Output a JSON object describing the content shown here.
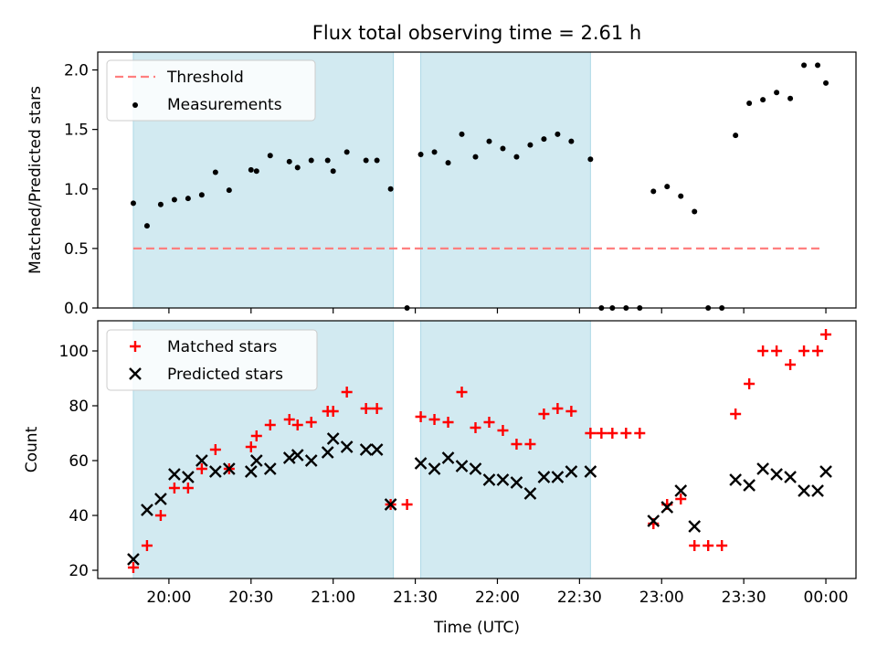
{
  "title": "Flux total observing time = 2.61 h",
  "xlabel": "Time (UTC)",
  "x_ticks": [
    "20:00",
    "20:30",
    "21:00",
    "21:30",
    "22:00",
    "22:30",
    "23:00",
    "23:30",
    "00:00"
  ],
  "colors": {
    "shade": "#add8e6",
    "threshold": "#ff7f7f",
    "measure": "#000000",
    "matched": "#ff0000",
    "predicted": "#000000"
  },
  "chart_data": [
    {
      "type": "scatter",
      "ylabel": "Matched/Predicted stars",
      "ylim": [
        0,
        2.15
      ],
      "y_ticks": [
        "0.0",
        "0.5",
        "1.0",
        "1.5",
        "2.0"
      ],
      "xlim": [
        "19:34",
        "00:11"
      ],
      "legend": [
        "Threshold",
        "Measurements"
      ],
      "legend_position": "upper-left",
      "shaded_intervals": [
        [
          "19:47",
          "21:22"
        ],
        [
          "21:32",
          "22:34"
        ]
      ],
      "threshold": {
        "name": "Threshold",
        "y": 0.5,
        "x_range": [
          "19:47",
          "23:59"
        ]
      },
      "series": [
        {
          "name": "Measurements",
          "points": [
            [
              "19:47",
              0.88
            ],
            [
              "19:52",
              0.69
            ],
            [
              "19:57",
              0.87
            ],
            [
              "20:02",
              0.91
            ],
            [
              "20:07",
              0.92
            ],
            [
              "20:12",
              0.95
            ],
            [
              "20:17",
              1.14
            ],
            [
              "20:22",
              0.99
            ],
            [
              "20:30",
              1.16
            ],
            [
              "20:32",
              1.15
            ],
            [
              "20:37",
              1.28
            ],
            [
              "20:44",
              1.23
            ],
            [
              "20:47",
              1.18
            ],
            [
              "20:52",
              1.24
            ],
            [
              "20:58",
              1.24
            ],
            [
              "21:00",
              1.15
            ],
            [
              "21:05",
              1.31
            ],
            [
              "21:12",
              1.24
            ],
            [
              "21:16",
              1.24
            ],
            [
              "21:21",
              1.0
            ],
            [
              "21:27",
              0.0
            ],
            [
              "21:32",
              1.29
            ],
            [
              "21:37",
              1.31
            ],
            [
              "21:42",
              1.22
            ],
            [
              "21:47",
              1.46
            ],
            [
              "21:52",
              1.27
            ],
            [
              "21:57",
              1.4
            ],
            [
              "22:02",
              1.34
            ],
            [
              "22:07",
              1.27
            ],
            [
              "22:12",
              1.37
            ],
            [
              "22:17",
              1.42
            ],
            [
              "22:22",
              1.46
            ],
            [
              "22:27",
              1.4
            ],
            [
              "22:34",
              1.25
            ],
            [
              "22:38",
              0.0
            ],
            [
              "22:42",
              0.0
            ],
            [
              "22:47",
              0.0
            ],
            [
              "22:52",
              0.0
            ],
            [
              "22:57",
              0.98
            ],
            [
              "23:02",
              1.02
            ],
            [
              "23:07",
              0.94
            ],
            [
              "23:12",
              0.81
            ],
            [
              "23:17",
              0.0
            ],
            [
              "23:22",
              0.0
            ],
            [
              "23:27",
              1.45
            ],
            [
              "23:32",
              1.72
            ],
            [
              "23:37",
              1.75
            ],
            [
              "23:42",
              1.81
            ],
            [
              "23:47",
              1.76
            ],
            [
              "23:52",
              2.04
            ],
            [
              "23:57",
              2.04
            ],
            [
              "00:00",
              1.89
            ]
          ]
        }
      ]
    },
    {
      "type": "scatter",
      "ylabel": "Count",
      "ylim": [
        17,
        111
      ],
      "y_ticks": [
        "20",
        "40",
        "60",
        "80",
        "100"
      ],
      "xlim": [
        "19:34",
        "00:11"
      ],
      "legend": [
        "Matched stars",
        "Predicted stars"
      ],
      "legend_position": "upper-left",
      "shaded_intervals": [
        [
          "19:47",
          "21:22"
        ],
        [
          "21:32",
          "22:34"
        ]
      ],
      "series": [
        {
          "name": "Matched stars",
          "marker": "+",
          "points": [
            [
              "19:47",
              21
            ],
            [
              "19:52",
              29
            ],
            [
              "19:57",
              40
            ],
            [
              "20:02",
              50
            ],
            [
              "20:07",
              50
            ],
            [
              "20:12",
              57
            ],
            [
              "20:17",
              64
            ],
            [
              "20:22",
              57
            ],
            [
              "20:30",
              65
            ],
            [
              "20:32",
              69
            ],
            [
              "20:37",
              73
            ],
            [
              "20:44",
              75
            ],
            [
              "20:47",
              73
            ],
            [
              "20:52",
              74
            ],
            [
              "20:58",
              78
            ],
            [
              "21:00",
              78
            ],
            [
              "21:05",
              85
            ],
            [
              "21:12",
              79
            ],
            [
              "21:16",
              79
            ],
            [
              "21:21",
              44
            ],
            [
              "21:27",
              44
            ],
            [
              "21:32",
              76
            ],
            [
              "21:37",
              75
            ],
            [
              "21:42",
              74
            ],
            [
              "21:47",
              85
            ],
            [
              "21:52",
              72
            ],
            [
              "21:57",
              74
            ],
            [
              "22:02",
              71
            ],
            [
              "22:07",
              66
            ],
            [
              "22:12",
              66
            ],
            [
              "22:17",
              77
            ],
            [
              "22:22",
              79
            ],
            [
              "22:27",
              78
            ],
            [
              "22:34",
              70
            ],
            [
              "22:38",
              70
            ],
            [
              "22:42",
              70
            ],
            [
              "22:47",
              70
            ],
            [
              "22:52",
              70
            ],
            [
              "22:57",
              37
            ],
            [
              "23:02",
              44
            ],
            [
              "23:07",
              46
            ],
            [
              "23:12",
              29
            ],
            [
              "23:17",
              29
            ],
            [
              "23:22",
              29
            ],
            [
              "23:27",
              77
            ],
            [
              "23:32",
              88
            ],
            [
              "23:37",
              100
            ],
            [
              "23:42",
              100
            ],
            [
              "23:47",
              95
            ],
            [
              "23:52",
              100
            ],
            [
              "23:57",
              100
            ],
            [
              "00:00",
              106
            ]
          ]
        },
        {
          "name": "Predicted stars",
          "marker": "x",
          "points": [
            [
              "19:47",
              24
            ],
            [
              "19:52",
              42
            ],
            [
              "19:57",
              46
            ],
            [
              "20:02",
              55
            ],
            [
              "20:07",
              54
            ],
            [
              "20:12",
              60
            ],
            [
              "20:17",
              56
            ],
            [
              "20:22",
              57
            ],
            [
              "20:30",
              56
            ],
            [
              "20:32",
              60
            ],
            [
              "20:37",
              57
            ],
            [
              "20:44",
              61
            ],
            [
              "20:47",
              62
            ],
            [
              "20:52",
              60
            ],
            [
              "20:58",
              63
            ],
            [
              "21:00",
              68
            ],
            [
              "21:05",
              65
            ],
            [
              "21:12",
              64
            ],
            [
              "21:16",
              64
            ],
            [
              "21:21",
              44
            ],
            [
              "21:32",
              59
            ],
            [
              "21:37",
              57
            ],
            [
              "21:42",
              61
            ],
            [
              "21:47",
              58
            ],
            [
              "21:52",
              57
            ],
            [
              "21:57",
              53
            ],
            [
              "22:02",
              53
            ],
            [
              "22:07",
              52
            ],
            [
              "22:12",
              48
            ],
            [
              "22:17",
              54
            ],
            [
              "22:22",
              54
            ],
            [
              "22:27",
              56
            ],
            [
              "22:34",
              56
            ],
            [
              "22:57",
              38
            ],
            [
              "23:02",
              43
            ],
            [
              "23:07",
              49
            ],
            [
              "23:12",
              36
            ],
            [
              "23:27",
              53
            ],
            [
              "23:32",
              51
            ],
            [
              "23:37",
              57
            ],
            [
              "23:42",
              55
            ],
            [
              "23:47",
              54
            ],
            [
              "23:52",
              49
            ],
            [
              "23:57",
              49
            ],
            [
              "00:00",
              56
            ]
          ]
        }
      ]
    }
  ]
}
